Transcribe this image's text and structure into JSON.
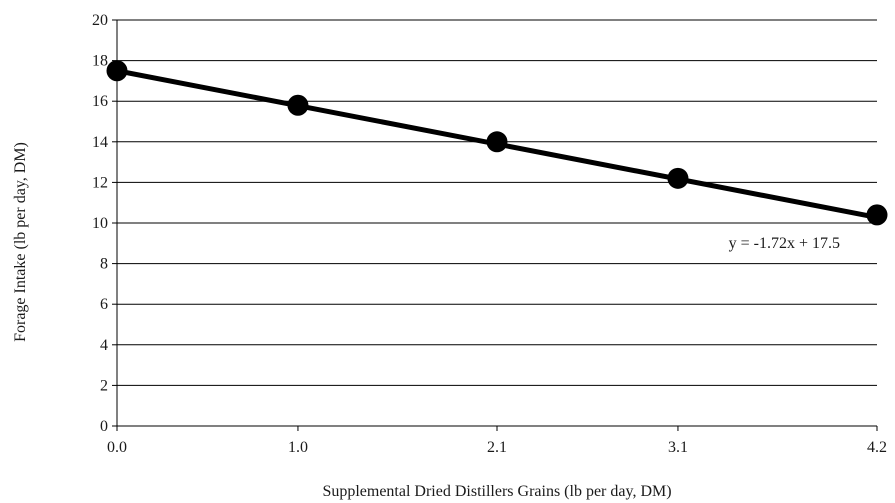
{
  "chart_data": {
    "type": "scatter",
    "title": "",
    "xlabel": "Supplemental Dried Distillers Grains (lb per day, DM)",
    "ylabel": "Forage Intake (lb per day, DM)",
    "x": [
      0.0,
      1.0,
      2.1,
      3.1,
      4.2
    ],
    "y": [
      17.5,
      15.8,
      14.0,
      12.2,
      10.4
    ],
    "x_tick_labels": [
      "0.0",
      "1.0",
      "2.1",
      "3.1",
      "4.2"
    ],
    "y_ticks": [
      0,
      2,
      4,
      6,
      8,
      10,
      12,
      14,
      16,
      18,
      20
    ],
    "xlim": [
      0,
      4.2
    ],
    "ylim": [
      0,
      20
    ],
    "grid": "horizontal",
    "trendline": {
      "slope": -1.72,
      "intercept": 17.5,
      "label": "y = -1.72x + 17.5"
    },
    "colors": {
      "marker": "#000000",
      "line": "#000000",
      "grid": "#000000"
    }
  }
}
